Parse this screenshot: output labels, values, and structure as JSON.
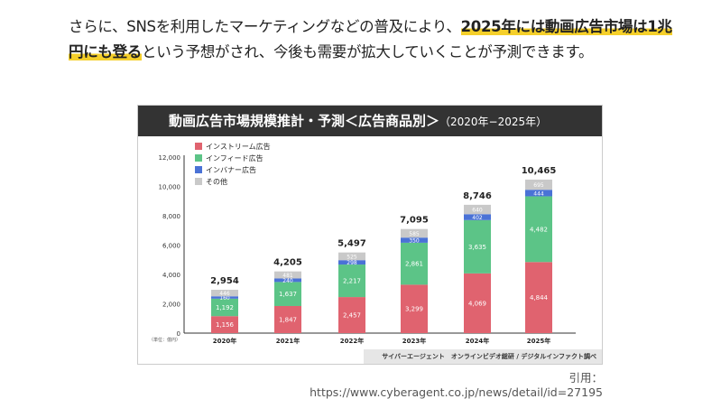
{
  "paragraph": {
    "text_before": "さらに、SNSを利用したマーケティングなどの普及により、",
    "highlight": "2025年には動画広告市場は1兆円にも登る",
    "text_after": "という予想がされ、今後も需要が拡大していくことが予測できます。"
  },
  "chart_data": {
    "type": "bar",
    "stacked": true,
    "title": "動画広告市場規模推計・予測＜広告商品別＞",
    "subtitle": "（2020年−2025年）",
    "unit_label": "（単位：億円）",
    "categories": [
      "2020年",
      "2021年",
      "2022年",
      "2023年",
      "2024年",
      "2025年"
    ],
    "series": [
      {
        "name": "インストリーム広告",
        "color": "#e0636f",
        "values": [
          1156,
          1847,
          2457,
          3299,
          4069,
          4844
        ]
      },
      {
        "name": "インフィード広告",
        "color": "#5cc487",
        "values": [
          1192,
          1637,
          2217,
          2861,
          3635,
          4482
        ]
      },
      {
        "name": "インバナー広告",
        "color": "#4a72d6",
        "values": [
          160,
          240,
          298,
          350,
          402,
          444
        ]
      },
      {
        "name": "その他",
        "color": "#c9c9c9",
        "values": [
          446,
          481,
          525,
          585,
          640,
          695
        ]
      }
    ],
    "totals": [
      2954,
      4205,
      5497,
      7095,
      8746,
      10465
    ],
    "ylim": [
      0,
      12000
    ],
    "yticks": [
      0,
      2000,
      4000,
      6000,
      8000,
      10000,
      12000
    ],
    "legend": "top-left",
    "grid": false,
    "source": "サイバーエージェント　オンラインビデオ総研 / デジタルインファクト調べ"
  },
  "citation": "引用：https://www.cyberagent.co.jp/news/detail/id=27195"
}
